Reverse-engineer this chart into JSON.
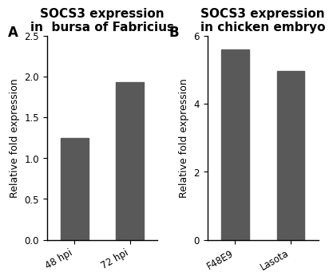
{
  "panel_A": {
    "title": "SOCS3 expression\nin  bursa of Fabricius",
    "categories": [
      "48 hpi",
      "72 hpi"
    ],
    "values": [
      1.25,
      1.93
    ],
    "ylim": [
      0,
      2.5
    ],
    "yticks": [
      0.0,
      0.5,
      1.0,
      1.5,
      2.0,
      2.5
    ],
    "ylabel": "Relative fold expression",
    "bar_color": "#595959",
    "label": "A"
  },
  "panel_B": {
    "title": "SOCS3 expression\nin chicken embryo",
    "categories": [
      "F48E9",
      "Lasota"
    ],
    "values": [
      5.6,
      4.95
    ],
    "ylim": [
      0,
      6
    ],
    "yticks": [
      0,
      2,
      4,
      6
    ],
    "ylabel": "Relative fold expression",
    "bar_color": "#595959",
    "label": "B"
  },
  "background_color": "#ffffff",
  "title_fontsize": 11,
  "label_fontsize": 9,
  "tick_fontsize": 8.5,
  "panel_label_fontsize": 12
}
